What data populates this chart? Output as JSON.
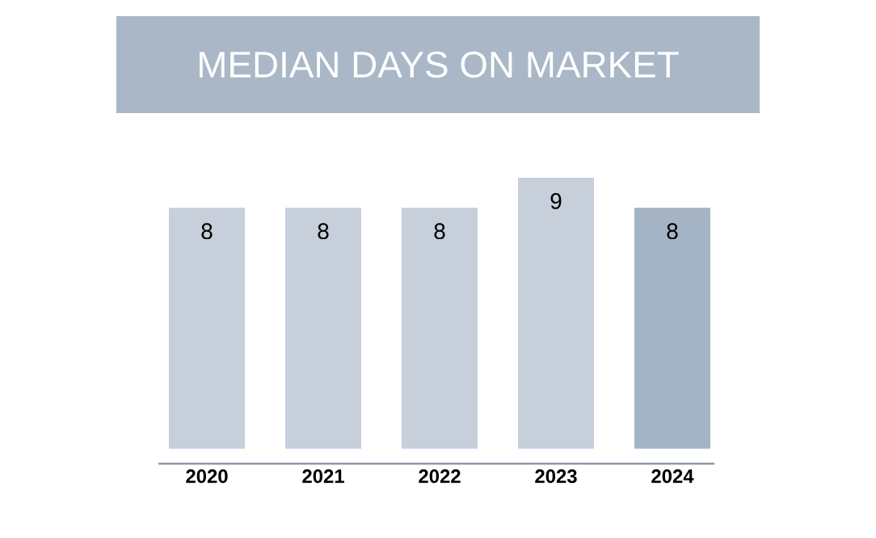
{
  "chart_data": {
    "type": "bar",
    "title": "MEDIAN DAYS ON MARKET",
    "categories": [
      "2020",
      "2021",
      "2022",
      "2023",
      "2024"
    ],
    "values": [
      8,
      8,
      8,
      9,
      8
    ],
    "colors": [
      "#c6cfda",
      "#c6cfda",
      "#c6cfda",
      "#c6cfda",
      "#a5b4c5"
    ],
    "data_labels": true
  }
}
